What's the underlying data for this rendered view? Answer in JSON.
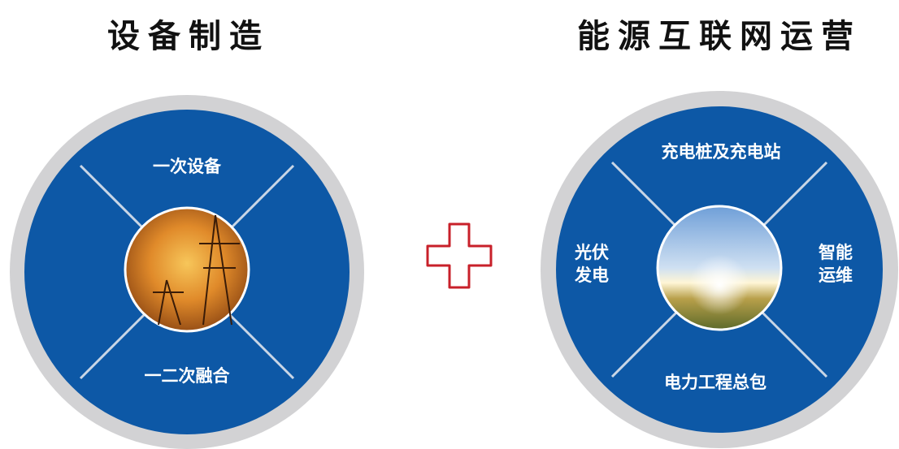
{
  "left": {
    "title": "设备制造",
    "segments": {
      "top": "一次设备",
      "bottom": "一二次融合"
    }
  },
  "right": {
    "title": "能源互联网运营",
    "segments": {
      "top": "充电桩及充电站",
      "left": [
        "光伏",
        "发电"
      ],
      "right": [
        "智能",
        "运维"
      ],
      "bottom": "电力工程总包"
    }
  }
}
